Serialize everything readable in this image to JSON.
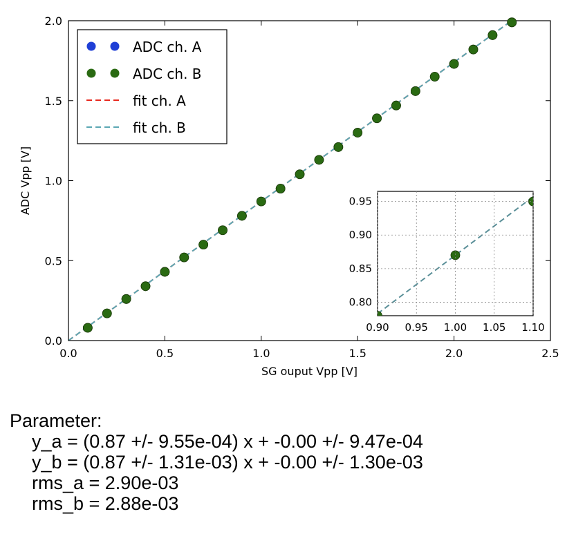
{
  "chart_data": [
    {
      "type": "scatter",
      "xlabel": "SG ouput Vpp [V]",
      "ylabel": "ADC Vpp [V]",
      "xlim": [
        0.0,
        2.5
      ],
      "ylim": [
        0.0,
        2.0
      ],
      "xticks": [
        "0.0",
        "0.5",
        "1.0",
        "1.5",
        "2.0",
        "2.5"
      ],
      "yticks": [
        "0.0",
        "0.5",
        "1.0",
        "1.5",
        "2.0"
      ],
      "grid": false,
      "legend_position": "top-left",
      "series": [
        {
          "name": "ADC ch. A",
          "style": "markers",
          "color": "#1f3fd6",
          "x": [
            0.1,
            0.2,
            0.3,
            0.4,
            0.5,
            0.6,
            0.7,
            0.8,
            0.9,
            1.0,
            1.1,
            1.2,
            1.3,
            1.4,
            1.5,
            1.6,
            1.7,
            1.8,
            1.9,
            2.0,
            2.1,
            2.2,
            2.3
          ],
          "y": [
            0.08,
            0.17,
            0.26,
            0.34,
            0.43,
            0.52,
            0.6,
            0.69,
            0.78,
            0.87,
            0.95,
            1.04,
            1.13,
            1.21,
            1.3,
            1.39,
            1.47,
            1.56,
            1.65,
            1.73,
            1.82,
            1.91,
            1.99
          ]
        },
        {
          "name": "ADC ch. B",
          "style": "markers",
          "color": "#2a6a12",
          "x": [
            0.1,
            0.2,
            0.3,
            0.4,
            0.5,
            0.6,
            0.7,
            0.8,
            0.9,
            1.0,
            1.1,
            1.2,
            1.3,
            1.4,
            1.5,
            1.6,
            1.7,
            1.8,
            1.9,
            2.0,
            2.1,
            2.2,
            2.3
          ],
          "y": [
            0.08,
            0.17,
            0.26,
            0.34,
            0.43,
            0.52,
            0.6,
            0.69,
            0.78,
            0.87,
            0.95,
            1.04,
            1.13,
            1.21,
            1.3,
            1.39,
            1.47,
            1.56,
            1.65,
            1.73,
            1.82,
            1.91,
            1.99
          ]
        },
        {
          "name": "fit ch. A",
          "style": "dashed",
          "color": "#e8281e",
          "slope": 0.87,
          "intercept": 0.0
        },
        {
          "name": "fit ch. B",
          "style": "dashed",
          "color": "#5aa7b3",
          "slope": 0.87,
          "intercept": 0.0
        }
      ]
    },
    {
      "type": "scatter",
      "xlim": [
        0.9,
        1.1
      ],
      "ylim": [
        0.78,
        0.965
      ],
      "xticks": [
        "0.90",
        "0.95",
        "1.00",
        "1.05",
        "1.10"
      ],
      "yticks": [
        "0.80",
        "0.85",
        "0.90",
        "0.95"
      ],
      "grid": true,
      "series": [
        {
          "style": "markers",
          "color": "#2a6a12",
          "x": [
            0.9,
            1.0,
            1.1
          ],
          "y": [
            0.78,
            0.87,
            0.95
          ]
        },
        {
          "style": "dashed",
          "color": "#5a8f98",
          "slope": 0.87,
          "intercept": 0.0
        }
      ]
    }
  ],
  "parameters": {
    "heading": "Parameter:",
    "y_a": "y_a = (0.87 +/- 9.55e-04) x + -0.00 +/- 9.47e-04",
    "y_b": "y_b = (0.87 +/- 1.31e-03) x + -0.00 +/- 1.30e-03",
    "rms_a": "rms_a = 2.90e-03",
    "rms_b": "rms_b = 2.88e-03"
  }
}
